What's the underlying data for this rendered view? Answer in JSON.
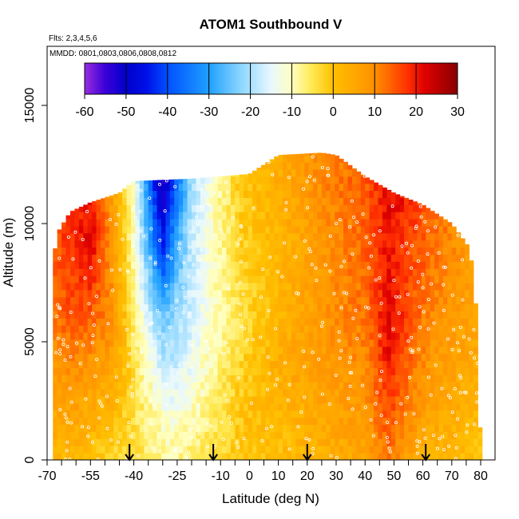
{
  "chart_data": {
    "type": "heatmap",
    "title": "ATOM1 Southbound V",
    "flights_note": "Flts: 2,3,4,5,6",
    "dates_note": "MMDD: 0801,0803,0806,0808,0812",
    "xlabel": "Latitude (deg N)",
    "ylabel": "Altitude (m)",
    "xlim": [
      -70,
      80
    ],
    "ylim": [
      0,
      17500
    ],
    "x_ticks": [
      -70,
      -55,
      -40,
      -25,
      -10,
      0,
      10,
      20,
      30,
      40,
      50,
      60,
      70,
      80
    ],
    "x_minor_ticks": [
      -65,
      -60,
      -50,
      -45,
      -35,
      -30,
      -20,
      -15,
      -5,
      5,
      15,
      25,
      35,
      45,
      55,
      65,
      75
    ],
    "y_ticks": [
      0,
      5000,
      10000,
      15000
    ],
    "colorbar": {
      "range": [
        -60,
        30
      ],
      "ticks": [
        -60,
        -50,
        -40,
        -30,
        -20,
        -10,
        0,
        10,
        20,
        30
      ],
      "stops": [
        {
          "v": -60,
          "c": "#9a2de0"
        },
        {
          "v": -55,
          "c": "#3a00d8"
        },
        {
          "v": -50,
          "c": "#0000cc"
        },
        {
          "v": -45,
          "c": "#0010e8"
        },
        {
          "v": -40,
          "c": "#0050ff"
        },
        {
          "v": -30,
          "c": "#20a0ff"
        },
        {
          "v": -22,
          "c": "#90d8ff"
        },
        {
          "v": -15,
          "c": "#e8f8ff"
        },
        {
          "v": -10,
          "c": "#ffffc0"
        },
        {
          "v": -5,
          "c": "#ffe850"
        },
        {
          "v": 0,
          "c": "#ffc000"
        },
        {
          "v": 10,
          "c": "#ff9000"
        },
        {
          "v": 18,
          "c": "#ff3000"
        },
        {
          "v": 22,
          "c": "#e00000"
        },
        {
          "v": 30,
          "c": "#880000"
        }
      ]
    },
    "arrows_at_latitude": [
      -41.5,
      -12.5,
      20,
      61
    ],
    "altitude_ceiling": [
      {
        "lat": -68,
        "alt": 8500
      },
      {
        "lat": -66,
        "alt": 9700
      },
      {
        "lat": -62,
        "alt": 10500
      },
      {
        "lat": -55,
        "alt": 10900
      },
      {
        "lat": -45,
        "alt": 11300
      },
      {
        "lat": -40,
        "alt": 11800
      },
      {
        "lat": -20,
        "alt": 11900
      },
      {
        "lat": -10,
        "alt": 12000
      },
      {
        "lat": 0,
        "alt": 12100
      },
      {
        "lat": 10,
        "alt": 12900
      },
      {
        "lat": 25,
        "alt": 13000
      },
      {
        "lat": 30,
        "alt": 12900
      },
      {
        "lat": 40,
        "alt": 12000
      },
      {
        "lat": 50,
        "alt": 11300
      },
      {
        "lat": 60,
        "alt": 10800
      },
      {
        "lat": 70,
        "alt": 10000
      },
      {
        "lat": 76,
        "alt": 9000
      },
      {
        "lat": 78,
        "alt": 7500
      },
      {
        "lat": 79,
        "alt": 4000
      },
      {
        "lat": 80,
        "alt": 500
      }
    ],
    "v_anchors": [
      {
        "lat": -68,
        "v": [
          2,
          5,
          8,
          12,
          14,
          16
        ]
      },
      {
        "lat": -62,
        "v": [
          2,
          6,
          10,
          15,
          18,
          18
        ]
      },
      {
        "lat": -55,
        "v": [
          0,
          4,
          8,
          14,
          22,
          20
        ]
      },
      {
        "lat": -48,
        "v": [
          -2,
          2,
          6,
          10,
          10,
          8
        ]
      },
      {
        "lat": -40,
        "v": [
          -4,
          -4,
          -4,
          -6,
          -10,
          -12
        ]
      },
      {
        "lat": -34,
        "v": [
          -6,
          -8,
          -12,
          -18,
          -30,
          -40
        ]
      },
      {
        "lat": -30,
        "v": [
          -8,
          -12,
          -18,
          -24,
          -45,
          -55
        ]
      },
      {
        "lat": -26,
        "v": [
          -8,
          -12,
          -18,
          -22,
          -30,
          -40
        ]
      },
      {
        "lat": -20,
        "v": [
          -6,
          -10,
          -14,
          -16,
          -18,
          -20
        ]
      },
      {
        "lat": -12,
        "v": [
          -4,
          -6,
          -8,
          -10,
          -10,
          -10
        ]
      },
      {
        "lat": -2,
        "v": [
          0,
          0,
          -2,
          -4,
          -2,
          0
        ]
      },
      {
        "lat": 10,
        "v": [
          0,
          2,
          4,
          2,
          2,
          4
        ]
      },
      {
        "lat": 20,
        "v": [
          2,
          4,
          6,
          6,
          6,
          8
        ]
      },
      {
        "lat": 30,
        "v": [
          4,
          6,
          8,
          10,
          10,
          12
        ]
      },
      {
        "lat": 40,
        "v": [
          6,
          8,
          10,
          12,
          14,
          14
        ]
      },
      {
        "lat": 48,
        "v": [
          12,
          16,
          20,
          22,
          20,
          22
        ]
      },
      {
        "lat": 55,
        "v": [
          6,
          10,
          14,
          16,
          16,
          20
        ]
      },
      {
        "lat": 62,
        "v": [
          2,
          6,
          8,
          10,
          14,
          14
        ]
      },
      {
        "lat": 70,
        "v": [
          2,
          4,
          6,
          8,
          10,
          10
        ]
      },
      {
        "lat": 79,
        "v": [
          0,
          2,
          4,
          6,
          6,
          6
        ]
      }
    ],
    "v_anchor_altitudes": [
      0,
      2000,
      4000,
      6000,
      9000,
      12000
    ],
    "sample_points_color": "#ffffff"
  }
}
